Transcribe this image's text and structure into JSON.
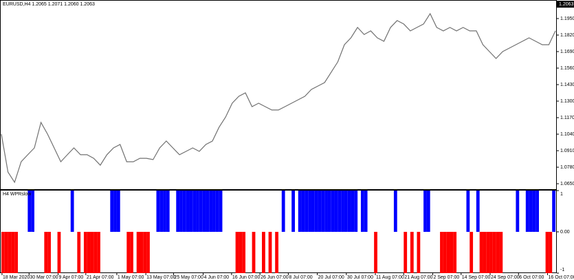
{
  "chart_data": [
    {
      "type": "line",
      "title": "EURUSD,H4 1.2065 1.2071 1.2060 1.2063",
      "color": "#707070",
      "current_price": 1.2063,
      "values": [
        1.104,
        1.0742,
        1.0661,
        1.0823,
        1.0878,
        1.0932,
        1.1132,
        1.104,
        1.0932,
        1.0823,
        1.0878,
        1.0932,
        1.0878,
        1.0878,
        1.085,
        1.0796,
        1.0878,
        1.0932,
        1.0959,
        1.0823,
        1.0823,
        1.085,
        1.085,
        1.084,
        1.0932,
        1.0986,
        1.0932,
        1.0878,
        1.0905,
        1.0932,
        1.0905,
        1.0959,
        1.0986,
        1.1094,
        1.1175,
        1.1284,
        1.1338,
        1.1365,
        1.1257,
        1.1284,
        1.1257,
        1.123,
        1.123,
        1.1257,
        1.1284,
        1.1311,
        1.1338,
        1.1392,
        1.1419,
        1.1446,
        1.1528,
        1.1609,
        1.1744,
        1.1798,
        1.188,
        1.1825,
        1.1853,
        1.1798,
        1.1771,
        1.188,
        1.1934,
        1.1907,
        1.1853,
        1.188,
        1.1907,
        1.1988,
        1.188,
        1.1853,
        1.188,
        1.1853,
        1.188,
        1.1853,
        1.1853,
        1.1744,
        1.169,
        1.1636,
        1.169,
        1.1717,
        1.1744,
        1.1771,
        1.1798,
        1.1771,
        1.1744,
        1.1744,
        1.1853
      ],
      "xlim": [
        0,
        84
      ],
      "xticks": [
        {
          "value": 0.1,
          "label": "18 Mar 2020"
        },
        {
          "value": 4.2,
          "label": "30 Mar 07:00"
        },
        {
          "value": 8.6,
          "label": "9 Apr 07:00"
        },
        {
          "value": 12.8,
          "label": "21 Apr 07:00"
        },
        {
          "value": 17.5,
          "label": "1 May 07:00"
        },
        {
          "value": 21.9,
          "label": "13 May 07:00"
        },
        {
          "value": 26.1,
          "label": "25 May 07:00"
        },
        {
          "value": 30.6,
          "label": "4 Jun 07:00"
        },
        {
          "value": 34.9,
          "label": "16 Jun 07:00"
        },
        {
          "value": 39.2,
          "label": "26 Jun 07:00"
        },
        {
          "value": 43.5,
          "label": "8 Jul 07:00"
        },
        {
          "value": 47.9,
          "label": "20 Jul 07:00"
        },
        {
          "value": 52.3,
          "label": "30 Jul 07:00"
        },
        {
          "value": 56.7,
          "label": "11 Aug 07:00"
        },
        {
          "value": 61.0,
          "label": "21 Aug 07:00"
        },
        {
          "value": 65.4,
          "label": "2 Sep 07:00"
        },
        {
          "value": 69.7,
          "label": "14 Sep 07:00"
        },
        {
          "value": 74.1,
          "label": "24 Sep 07:00"
        },
        {
          "value": 78.4,
          "label": "6 Oct 07:00"
        },
        {
          "value": 82.8,
          "label": "16 Oct 07:00"
        }
      ],
      "ylim": [
        1.0607,
        1.2096
      ],
      "yticks": [
        {
          "value": 1.195,
          "label": "1.1950"
        },
        {
          "value": 1.182,
          "label": "1.1820"
        },
        {
          "value": 1.169,
          "label": "1.1690"
        },
        {
          "value": 1.156,
          "label": "1.1560"
        },
        {
          "value": 1.143,
          "label": "1.1430"
        },
        {
          "value": 1.13,
          "label": "1.1300"
        },
        {
          "value": 1.117,
          "label": "1.1170"
        },
        {
          "value": 1.104,
          "label": "1.1040"
        },
        {
          "value": 1.091,
          "label": "1.0910"
        },
        {
          "value": 1.078,
          "label": "1.0780"
        },
        {
          "value": 1.065,
          "label": "1.0650"
        }
      ]
    },
    {
      "type": "histogram-signal",
      "title": "H4 WPRslow",
      "up_color": "#0000ff",
      "down_color": "#ff0000",
      "values": [
        -1,
        -1,
        -1,
        -1,
        -1,
        0,
        0,
        0,
        1,
        1,
        0,
        0,
        0,
        -1,
        -1,
        0,
        0,
        -1,
        0,
        0,
        0,
        1,
        0,
        -1,
        0,
        -1,
        -1,
        -1,
        -1,
        -1,
        0,
        0,
        0,
        1,
        1,
        1,
        0,
        0,
        -1,
        -1,
        0,
        -1,
        -1,
        -1,
        -1,
        0,
        0,
        1,
        1,
        1,
        1,
        0,
        0,
        1,
        1,
        1,
        1,
        1,
        1,
        1,
        1,
        1,
        1,
        1,
        1,
        1,
        1,
        0,
        0,
        0,
        0,
        -1,
        -1,
        -1,
        0,
        0,
        -1,
        0,
        0,
        -1,
        0,
        -1,
        0,
        -1,
        0,
        1,
        0,
        0,
        1,
        0,
        1,
        1,
        1,
        1,
        1,
        1,
        1,
        1,
        1,
        1,
        1,
        1,
        1,
        1,
        1,
        1,
        1,
        1,
        0,
        1,
        1,
        0,
        0,
        -1,
        0,
        0,
        0,
        0,
        0,
        1,
        0,
        0,
        -1,
        0,
        -1,
        0,
        -1,
        0,
        1,
        1,
        0,
        0,
        0,
        -1,
        -1,
        -1,
        -1,
        -1,
        0,
        0,
        0,
        1,
        -1,
        0,
        1,
        -1,
        -1,
        -1,
        -1,
        -1,
        -1,
        -1,
        0,
        0,
        0,
        0,
        1,
        0,
        0,
        1,
        1,
        1,
        1,
        0,
        0,
        -1,
        -1,
        1
      ],
      "ylim": [
        -1,
        1
      ],
      "yticks": [
        1,
        {
          "value": 0,
          "label": "0.00"
        },
        -1
      ]
    }
  ]
}
